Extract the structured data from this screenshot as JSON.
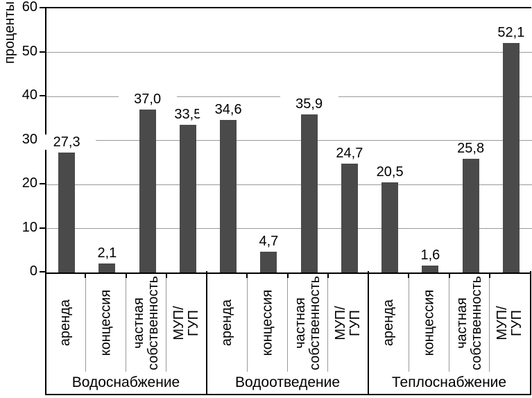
{
  "chart_data": {
    "type": "bar",
    "title": "",
    "ylabel": "проценты",
    "xlabel": "",
    "ylim": [
      0,
      60
    ],
    "yticks": [
      0,
      10,
      20,
      30,
      40,
      50,
      60
    ],
    "grid": true,
    "legend": "none",
    "bar_color": "#4a4a4a",
    "gridline_color": "#999999",
    "decimal_separator": ",",
    "groups": [
      {
        "label": "Водоснабжение",
        "categories": [
          "аренда",
          "концессия",
          "частная\nсобственность",
          "МУП/ГУП"
        ],
        "values": [
          27.3,
          2.1,
          37.0,
          33.5
        ],
        "value_labels": [
          "27,3",
          "2,1",
          "37,0",
          "33,5"
        ]
      },
      {
        "label": "Водоотведение",
        "categories": [
          "аренда",
          "концессия",
          "частная\nсобственность",
          "МУП/ГУП"
        ],
        "values": [
          34.6,
          4.7,
          35.9,
          24.7
        ],
        "value_labels": [
          "34,6",
          "4,7",
          "35,9",
          "24,7"
        ]
      },
      {
        "label": "Теплоснабжение",
        "categories": [
          "аренда",
          "концессия",
          "частная\nсобственность",
          "МУП/ГУП"
        ],
        "values": [
          20.5,
          1.6,
          25.8,
          52.1
        ],
        "value_labels": [
          "20,5",
          "1,6",
          "25,8",
          "52,1"
        ]
      }
    ]
  }
}
